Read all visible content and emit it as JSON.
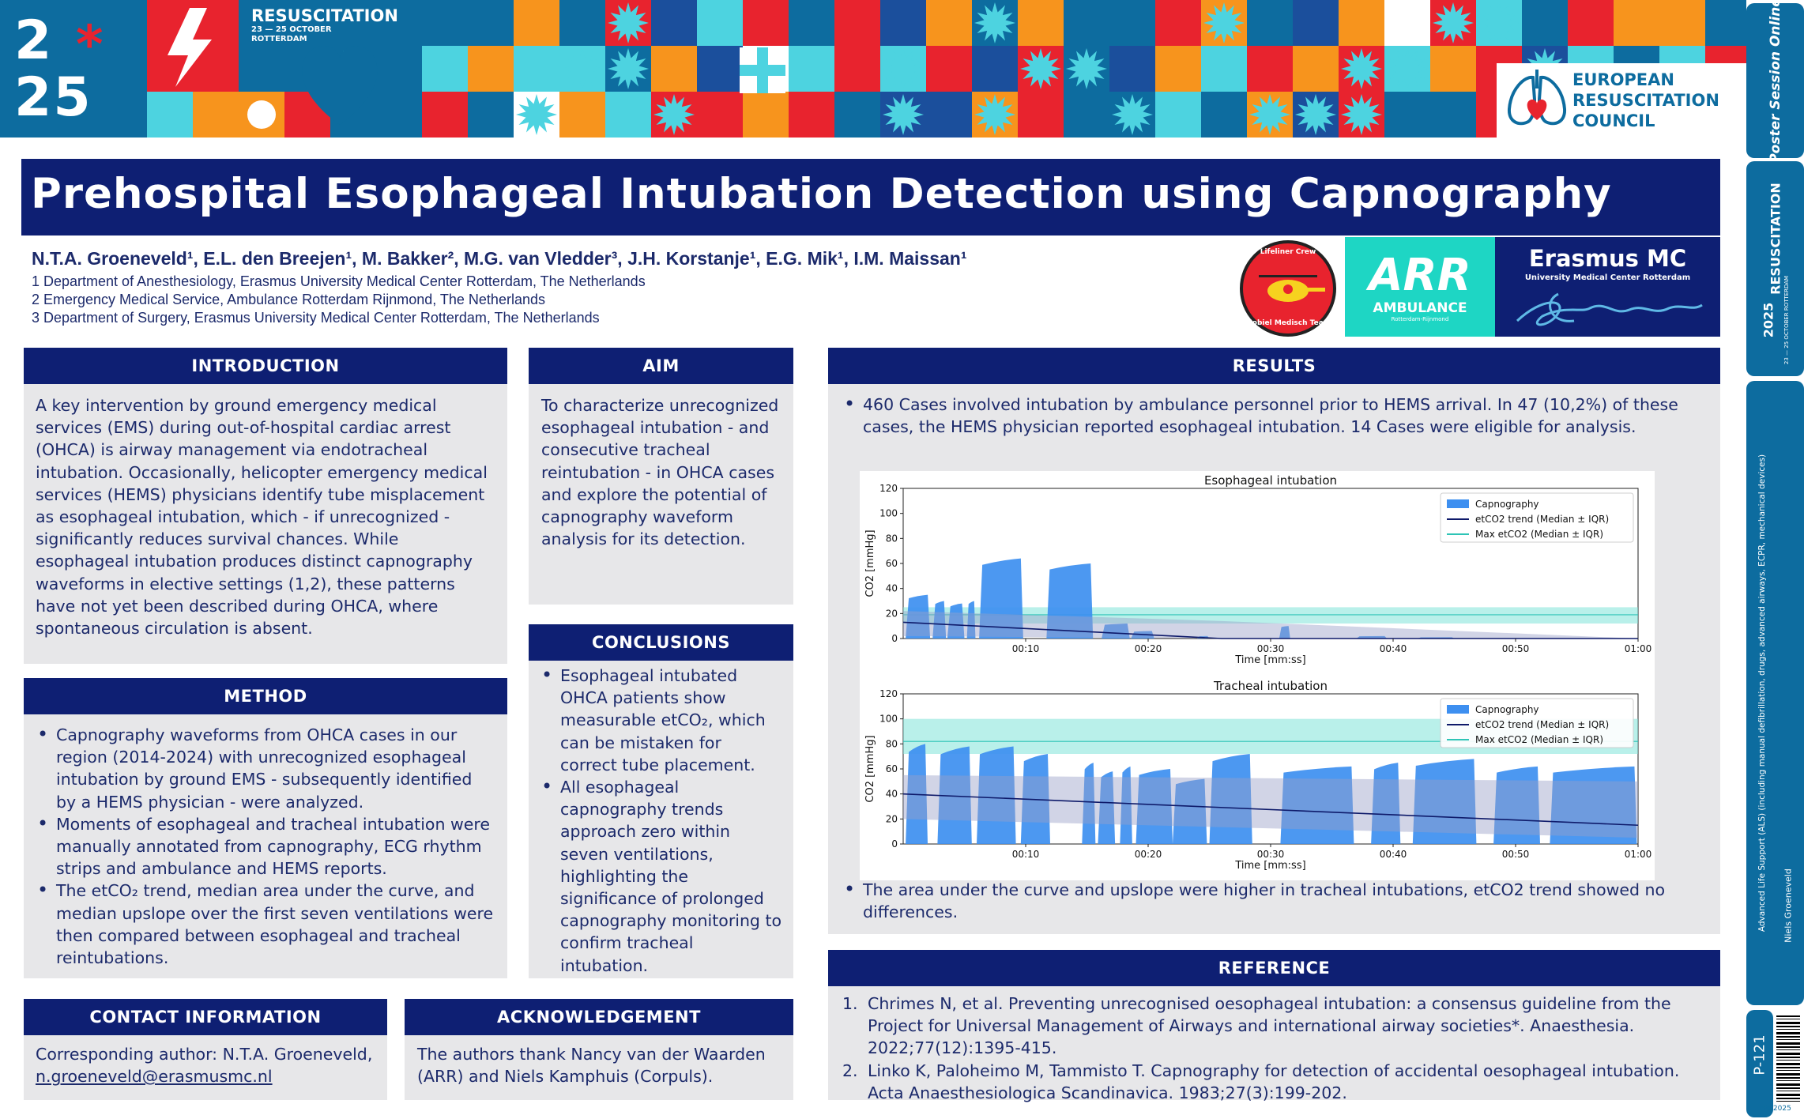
{
  "banner": {
    "event_name": "RESUSCITATION",
    "event_dates": "23 — 25 OCTOBER",
    "event_city": "ROTTERDAM",
    "year_top": "2",
    "year_bottom": "25",
    "year_star": "*",
    "organisation_line1": "EUROPEAN",
    "organisation_line2": "RESUSCITATION",
    "organisation_line3": "COUNCIL",
    "colors": {
      "navy": "#0e1f73",
      "teal": "#0d6c9f",
      "red": "#e8232e",
      "orange": "#f7941d",
      "cyan": "#4dd3e0"
    }
  },
  "sidebar": {
    "posters_label": "Poster Session Online",
    "congress_label": "RESUSCITATION",
    "congress_year": "2025",
    "congress_dates": "23 — 25 OCTOBER ROTTERDAM",
    "topic": "Advanced Life Support (ALS) (including manual defibrillation, drugs, advanced airways, ECPR, mechanical devices)",
    "presenter": "Niels Groeneveld",
    "poster_id": "P-121",
    "footer_code": "ERC2025"
  },
  "title": "Prehospital Esophageal Intubation Detection using Capnography",
  "authors": {
    "names": "N.T.A. Groeneveld¹, E.L. den Breejen¹, M. Bakker², M.G. van Vledder³, J.H. Korstanje¹, E.G. Mik¹, I.M. Maissan¹",
    "affiliations": [
      "1 Department of Anesthesiology, Erasmus University Medical Center Rotterdam, The Netherlands",
      "2 Emergency Medical Service, Ambulance Rotterdam Rijnmond, The Netherlands",
      "3 Department of Surgery, Erasmus University Medical Center Rotterdam, The Netherlands"
    ]
  },
  "partners": {
    "lifeliner_top": "Lifeliner Crew",
    "lifeliner_bottom": "Mobiel Medisch Team",
    "arr_main": "ARR",
    "arr_sub": "AMBULANCE",
    "arr_tiny": "Rotterdam-Rijnmond",
    "emc_main": "Erasmus MC",
    "emc_sub": "University Medical Center Rotterdam"
  },
  "introduction": {
    "heading": "INTRODUCTION",
    "text": "A key intervention by ground emergency medical services (EMS) during out-of-hospital cardiac arrest (OHCA) is airway management via endotracheal intubation. Occasionally, helicopter emergency medical services (HEMS) physicians identify tube misplacement as esophageal intubation, which - if unrecognized - significantly reduces survival chances. While esophageal intubation produces distinct capnography waveforms in elective settings (1,2), these patterns have not yet been described during OHCA, where spontaneous circulation is absent."
  },
  "aim": {
    "heading": "AIM",
    "text": "To characterize unrecognized esophageal intubation - and consecutive tracheal reintubation - in OHCA cases and explore the potential of capnography waveform analysis for its detection."
  },
  "method": {
    "heading": "METHOD",
    "items": [
      "Capnography waveforms from OHCA cases in our region (2014-2024) with unrecognized esophageal intubation by ground EMS - subsequently identified by a HEMS physician - were analyzed.",
      "Moments of esophageal and tracheal intubation were manually annotated from capnography, ECG rhythm strips and ambulance and HEMS reports.",
      "The etCO₂ trend, median area under the curve, and median upslope over the first seven ventilations were then compared between esophageal and tracheal reintubations."
    ]
  },
  "conclusions": {
    "heading": "CONCLUSIONS",
    "items": [
      "Esophageal intubated OHCA patients show measurable etCO₂, which can be mistaken for correct tube placement.",
      "All esophageal capnography trends approach zero within seven ventilations, highlighting the significance of prolonged capnography monitoring to confirm tracheal intubation."
    ]
  },
  "results": {
    "heading": "RESULTS",
    "item1": "460 Cases involved intubation by ambulance personnel prior to HEMS arrival. In 47 (10,2%) of these cases, the HEMS physician reported esophageal intubation. 14 Cases were eligible for analysis.",
    "item2": "The area under the curve and upslope were higher in tracheal intubations, etCO2 trend showed no differences."
  },
  "contact": {
    "heading": "CONTACT INFORMATION",
    "line1": "Corresponding author: N.T.A. Groeneveld,",
    "email": "n.groeneveld@erasmusmc.nl"
  },
  "acknowledgement": {
    "heading": "ACKNOWLEDGEMENT",
    "text": "The authors thank Nancy van der Waarden (ARR) and Niels Kamphuis (Corpuls)."
  },
  "reference": {
    "heading": "REFERENCE",
    "items": [
      {
        "num": "1.",
        "text": "Chrimes N, et al. Preventing unrecognised oesophageal intubation: a consensus guideline from the Project for Universal Management of Airways and international airway societies*. Anaesthesia. 2022;77(12):1395-415."
      },
      {
        "num": "2.",
        "text": "Linko K, Paloheimo M, Tammisto T. Capnography for detection of accidental oesophageal intubation. Acta Anaesthesiologica Scandinavica. 1983;27(3):199-202."
      }
    ]
  },
  "chart_data": [
    {
      "type": "area",
      "title": "Esophageal intubation",
      "xlabel": "Time [mm:ss]",
      "ylabel": "CO2 [mmHg]",
      "xlim": [
        0,
        60
      ],
      "ylim": [
        0,
        120
      ],
      "xticks": [
        10,
        20,
        30,
        40,
        50,
        60
      ],
      "xtick_labels": [
        "00:10",
        "00:20",
        "00:30",
        "00:40",
        "00:50",
        "01:00"
      ],
      "yticks": [
        0,
        20,
        40,
        60,
        80,
        100,
        120
      ],
      "legend": [
        "Capnography",
        "etCO2 trend (Median ± IQR)",
        "Max etCO2 (Median ± IQR)"
      ],
      "legend_position": "top-right",
      "capnography_breaths": [
        {
          "start": 0.2,
          "end": 2.2,
          "peak": 35
        },
        {
          "start": 2.4,
          "end": 3.5,
          "peak": 30
        },
        {
          "start": 3.6,
          "end": 5.0,
          "peak": 28
        },
        {
          "start": 5.2,
          "end": 5.9,
          "peak": 30
        },
        {
          "start": 6.2,
          "end": 9.8,
          "peak": 64
        },
        {
          "start": 11.7,
          "end": 15.5,
          "peak": 60
        },
        {
          "start": 16.2,
          "end": 18.5,
          "peak": 12
        },
        {
          "start": 18.6,
          "end": 20.5,
          "peak": 6
        },
        {
          "start": 24.0,
          "end": 25.0,
          "peak": 2
        },
        {
          "start": 30.7,
          "end": 31.6,
          "peak": 10
        },
        {
          "start": 37.0,
          "end": 39.5,
          "peak": 2
        },
        {
          "start": 42.0,
          "end": 45.0,
          "peak": 1
        }
      ],
      "etco2_trend": {
        "x": [
          0,
          26,
          60
        ],
        "median": [
          13,
          0,
          0
        ],
        "iqr_low": [
          2,
          0,
          0
        ],
        "iqr_high": [
          22,
          14,
          0
        ]
      },
      "max_etco2": {
        "median": 19,
        "iqr_low": 12,
        "iqr_high": 25
      }
    },
    {
      "type": "area",
      "title": "Tracheal intubation",
      "xlabel": "Time [mm:ss]",
      "ylabel": "CO2 [mmHg]",
      "xlim": [
        0,
        60
      ],
      "ylim": [
        0,
        120
      ],
      "xticks": [
        10,
        20,
        30,
        40,
        50,
        60
      ],
      "xtick_labels": [
        "00:10",
        "00:20",
        "00:30",
        "00:40",
        "00:50",
        "01:00"
      ],
      "yticks": [
        0,
        20,
        40,
        60,
        80,
        100,
        120
      ],
      "legend": [
        "Capnography",
        "etCO2 trend (Median ± IQR)",
        "Max etCO2 (Median ± IQR)"
      ],
      "legend_position": "top-right",
      "capnography_breaths": [
        {
          "start": 0.2,
          "end": 2.0,
          "peak": 80
        },
        {
          "start": 2.8,
          "end": 5.6,
          "peak": 78
        },
        {
          "start": 6.0,
          "end": 9.2,
          "peak": 78
        },
        {
          "start": 9.6,
          "end": 12.0,
          "peak": 72
        },
        {
          "start": 14.6,
          "end": 15.7,
          "peak": 65
        },
        {
          "start": 15.9,
          "end": 17.3,
          "peak": 58
        },
        {
          "start": 17.7,
          "end": 18.7,
          "peak": 62
        },
        {
          "start": 19.0,
          "end": 22.0,
          "peak": 60
        },
        {
          "start": 22.0,
          "end": 24.8,
          "peak": 52
        },
        {
          "start": 25.0,
          "end": 28.5,
          "peak": 72
        },
        {
          "start": 30.8,
          "end": 36.8,
          "peak": 62
        },
        {
          "start": 38.2,
          "end": 40.6,
          "peak": 65
        },
        {
          "start": 41.6,
          "end": 46.8,
          "peak": 68
        },
        {
          "start": 48.2,
          "end": 52.0,
          "peak": 62
        },
        {
          "start": 52.8,
          "end": 59.9,
          "peak": 62
        }
      ],
      "etco2_trend": {
        "x": [
          0,
          60
        ],
        "median": [
          40,
          15
        ],
        "iqr_low": [
          20,
          5
        ],
        "iqr_high": [
          55,
          50
        ]
      },
      "max_etco2": {
        "median": 82,
        "iqr_low": 72,
        "iqr_high": 100
      }
    }
  ]
}
